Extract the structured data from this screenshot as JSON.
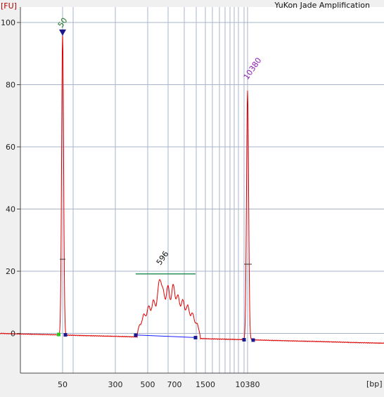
{
  "chart_data": {
    "type": "line",
    "title": "YuKon Jade Amplification",
    "ylabel": "[FU]",
    "xlabel": "[bp]",
    "ylim": [
      -12.5,
      105
    ],
    "grid": true,
    "yticks": [
      0,
      20,
      40,
      60,
      80,
      100
    ],
    "xtick_labels": [
      "50",
      "300",
      "500",
      "700",
      "1500",
      "10380"
    ],
    "xgrid_labels": [
      "",
      "",
      "",
      "",
      "",
      "",
      "",
      "",
      "",
      "",
      "",
      "",
      ""
    ],
    "peaks": [
      {
        "label": "50",
        "size_bp": 50,
        "height": 97
      },
      {
        "label": "596",
        "size_bp": 596,
        "height": 21
      },
      {
        "label": "10380",
        "size_bp": 10380,
        "height": 80
      }
    ],
    "smear_region_bp": [
      400,
      1400
    ],
    "colors": {
      "trace": "#e00000",
      "baseline": "#1a1aff",
      "region": "#1a8a4a",
      "marker": "#1a1a8c",
      "lower_marker_label": "#1f7a1f",
      "upper_marker_label": "#8a1ab0",
      "ylabel": "#b00000",
      "grid": "#a7b4cc"
    }
  }
}
